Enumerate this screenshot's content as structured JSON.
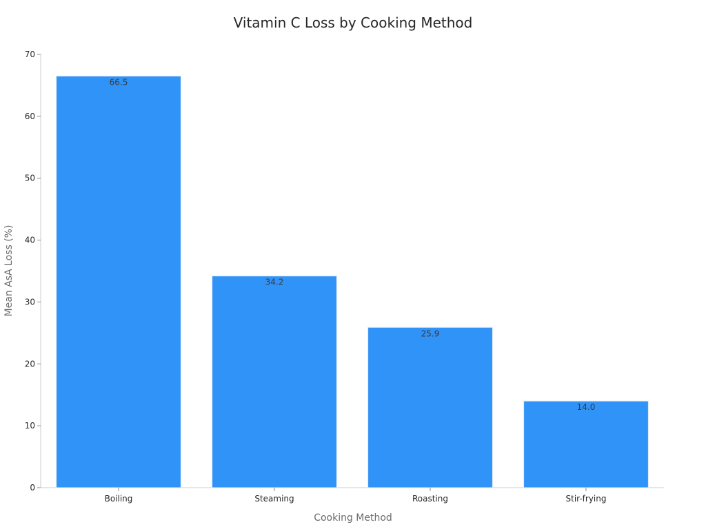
{
  "chart_data": {
    "type": "bar",
    "title": "Vitamin C Loss by Cooking Method",
    "xlabel": "Cooking Method",
    "ylabel": "Mean AsA Loss (%)",
    "categories": [
      "Boiling",
      "Steaming",
      "Roasting",
      "Stir-frying"
    ],
    "values": [
      66.5,
      34.2,
      25.9,
      14.0
    ],
    "value_labels": [
      "66.5",
      "34.2",
      "25.9",
      "14.0"
    ],
    "ylim": [
      0,
      70
    ],
    "yticks": [
      0,
      10,
      20,
      30,
      40,
      50,
      60,
      70
    ],
    "ytick_labels": [
      "0",
      "10",
      "20",
      "30",
      "40",
      "50",
      "60",
      "70"
    ],
    "grid": false,
    "legend": "none",
    "colors": {
      "bar": "#3093f8",
      "bar_edge": "#dfe9f5",
      "axis": "#cccccc",
      "tick": "#8a8a8a",
      "text": "#262626",
      "axis_label": "#6b6b6b"
    }
  }
}
